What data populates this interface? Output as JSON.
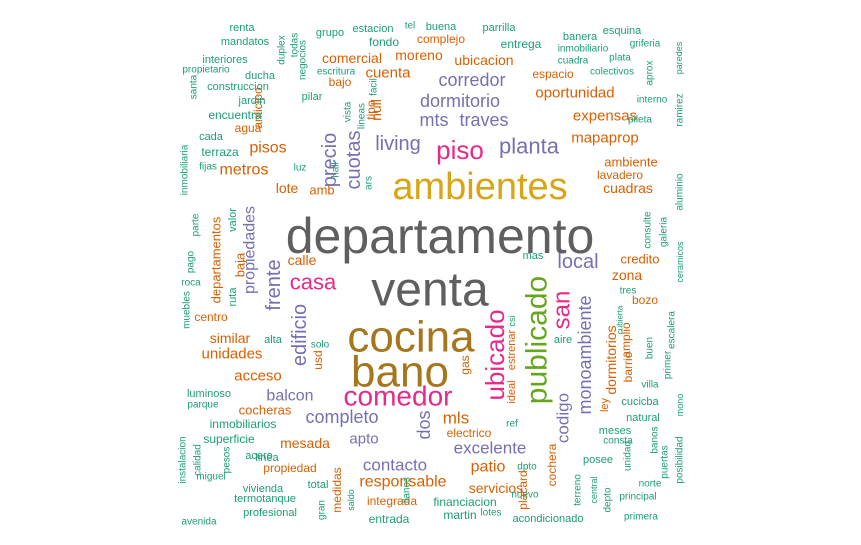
{
  "chart_data": {
    "type": "wordcloud",
    "palette": {
      "gray": "#5f5f5f",
      "gold": "#d9a514",
      "olive": "#a6761d",
      "green": "#66a61e",
      "pink": "#e7298a",
      "purple": "#7570b3",
      "orange": "#d95f02",
      "teal": "#1b9e77"
    },
    "words": [
      {
        "text": "departamento",
        "weight": 48,
        "color": "#5f5f5f"
      },
      {
        "text": "venta",
        "weight": 48,
        "color": "#5f5f5f"
      },
      {
        "text": "ambientes",
        "weight": 38,
        "color": "#d9a514"
      },
      {
        "text": "cocina",
        "weight": 44,
        "color": "#a6761d"
      },
      {
        "text": "bano",
        "weight": 44,
        "color": "#a6761d"
      },
      {
        "text": "publicado",
        "weight": 30,
        "color": "#66a61e"
      },
      {
        "text": "comedor",
        "weight": 28,
        "color": "#e7298a"
      },
      {
        "text": "piso",
        "weight": 26,
        "color": "#e7298a"
      },
      {
        "text": "ubicado",
        "weight": 26,
        "color": "#e7298a"
      },
      {
        "text": "san",
        "weight": 24,
        "color": "#e7298a"
      },
      {
        "text": "casa",
        "weight": 22,
        "color": "#e7298a"
      },
      {
        "text": "planta",
        "weight": 22,
        "color": "#7570b3"
      },
      {
        "text": "living",
        "weight": 20,
        "color": "#7570b3"
      },
      {
        "text": "edificio",
        "weight": 20,
        "color": "#7570b3"
      },
      {
        "text": "frente",
        "weight": 20,
        "color": "#7570b3"
      },
      {
        "text": "cuotas",
        "weight": 20,
        "color": "#7570b3"
      },
      {
        "text": "precio",
        "weight": 20,
        "color": "#7570b3"
      },
      {
        "text": "local",
        "weight": 20,
        "color": "#7570b3"
      },
      {
        "text": "completo",
        "weight": 18,
        "color": "#7570b3"
      },
      {
        "text": "monoambiente",
        "weight": 18,
        "color": "#7570b3"
      },
      {
        "text": "dos",
        "weight": 18,
        "color": "#7570b3"
      },
      {
        "text": "mts",
        "weight": 18,
        "color": "#7570b3"
      },
      {
        "text": "traves",
        "weight": 18,
        "color": "#7570b3"
      },
      {
        "text": "dormitorio",
        "weight": 18,
        "color": "#7570b3"
      },
      {
        "text": "corredor",
        "weight": 18,
        "color": "#7570b3"
      },
      {
        "text": "codigo",
        "weight": 17,
        "color": "#7570b3"
      },
      {
        "text": "excelente",
        "weight": 17,
        "color": "#7570b3"
      },
      {
        "text": "contacto",
        "weight": 17,
        "color": "#7570b3"
      },
      {
        "text": "balcon",
        "weight": 16,
        "color": "#7570b3"
      },
      {
        "text": "propiedades",
        "weight": 16,
        "color": "#7570b3"
      },
      {
        "text": "apto",
        "weight": 15,
        "color": "#7570b3"
      },
      {
        "text": "mls",
        "weight": 17,
        "color": "#d95f02"
      },
      {
        "text": "responsable",
        "weight": 16,
        "color": "#d95f02"
      },
      {
        "text": "patio",
        "weight": 16,
        "color": "#d95f02"
      },
      {
        "text": "cuenta",
        "weight": 15,
        "color": "#d95f02"
      },
      {
        "text": "pisos",
        "weight": 16,
        "color": "#d95f02"
      },
      {
        "text": "metros",
        "weight": 16,
        "color": "#d95f02"
      },
      {
        "text": "mapaprop",
        "weight": 15,
        "color": "#d95f02"
      },
      {
        "text": "expensas",
        "weight": 15,
        "color": "#d95f02"
      },
      {
        "text": "oportunidad",
        "weight": 15,
        "color": "#d95f02"
      },
      {
        "text": "acceso",
        "weight": 15,
        "color": "#d95f02"
      },
      {
        "text": "unidades",
        "weight": 15,
        "color": "#d95f02"
      },
      {
        "text": "cuadras",
        "weight": 14,
        "color": "#d95f02"
      },
      {
        "text": "mesada",
        "weight": 14,
        "color": "#d95f02"
      },
      {
        "text": "calle",
        "weight": 14,
        "color": "#d95f02"
      },
      {
        "text": "lote",
        "weight": 14,
        "color": "#d95f02"
      },
      {
        "text": "comercial",
        "weight": 14,
        "color": "#d95f02"
      },
      {
        "text": "moreno",
        "weight": 14,
        "color": "#d95f02"
      },
      {
        "text": "null",
        "weight": 14,
        "color": "#d95f02"
      },
      {
        "text": "dormitorios",
        "weight": 14,
        "color": "#d95f02"
      },
      {
        "text": "servicios",
        "weight": 14,
        "color": "#d95f02"
      },
      {
        "text": "zona",
        "weight": 14,
        "color": "#d95f02"
      },
      {
        "text": "similar",
        "weight": 14,
        "color": "#d95f02"
      },
      {
        "text": "ubicacion",
        "weight": 14,
        "color": "#d95f02"
      },
      {
        "text": "amb",
        "weight": 13,
        "color": "#d95f02"
      },
      {
        "text": "ambiente",
        "weight": 13,
        "color": "#d95f02"
      },
      {
        "text": "cocheras",
        "weight": 13,
        "color": "#d95f02"
      },
      {
        "text": "baja",
        "weight": 13,
        "color": "#d95f02"
      },
      {
        "text": "departamentos",
        "weight": 13,
        "color": "#d95f02"
      },
      {
        "text": "credito",
        "weight": 13,
        "color": "#d95f02"
      },
      {
        "text": "lavadero",
        "weight": 12,
        "color": "#d95f02"
      },
      {
        "text": "amplio",
        "weight": 12,
        "color": "#d95f02"
      },
      {
        "text": "usd",
        "weight": 12,
        "color": "#d95f02"
      },
      {
        "text": "tipo",
        "weight": 12,
        "color": "#d95f02"
      },
      {
        "text": "bajo",
        "weight": 12,
        "color": "#d95f02"
      },
      {
        "text": "espacio",
        "weight": 12,
        "color": "#d95f02"
      },
      {
        "text": "integrada",
        "weight": 12,
        "color": "#d95f02"
      },
      {
        "text": "propiedad",
        "weight": 12,
        "color": "#d95f02"
      },
      {
        "text": "barrio",
        "weight": 12,
        "color": "#d95f02"
      },
      {
        "text": "bozo",
        "weight": 12,
        "color": "#d95f02"
      },
      {
        "text": "cochera",
        "weight": 12,
        "color": "#d95f02"
      },
      {
        "text": "placard",
        "weight": 12,
        "color": "#d95f02"
      },
      {
        "text": "ley",
        "weight": 11,
        "color": "#d95f02"
      },
      {
        "text": "agua",
        "weight": 12,
        "color": "#d95f02"
      },
      {
        "text": "anticipo",
        "weight": 12,
        "color": "#d95f02"
      },
      {
        "text": "complejo",
        "weight": 12,
        "color": "#d95f02"
      },
      {
        "text": "centro",
        "weight": 12,
        "color": "#d95f02"
      },
      {
        "text": "electrico",
        "weight": 12,
        "color": "#d95f02"
      },
      {
        "text": "medidas",
        "weight": 12,
        "color": "#d95f02"
      },
      {
        "text": "gas",
        "weight": 12,
        "color": "#d95f02"
      },
      {
        "text": "ideal",
        "weight": 11,
        "color": "#d95f02"
      },
      {
        "text": "estrenar",
        "weight": 11,
        "color": "#d95f02"
      },
      {
        "text": "ars",
        "weight": 10,
        "color": "#1b9e77"
      },
      {
        "text": "entrega",
        "weight": 12,
        "color": "#1b9e77"
      },
      {
        "text": "fondo",
        "weight": 12,
        "color": "#1b9e77"
      },
      {
        "text": "financiacion",
        "weight": 12,
        "color": "#1b9e77"
      },
      {
        "text": "martin",
        "weight": 12,
        "color": "#1b9e77"
      },
      {
        "text": "entrada",
        "weight": 12,
        "color": "#1b9e77"
      },
      {
        "text": "superficie",
        "weight": 12,
        "color": "#1b9e77"
      },
      {
        "text": "inmobiliarios",
        "weight": 12,
        "color": "#1b9e77"
      },
      {
        "text": "alta",
        "weight": 11,
        "color": "#1b9e77"
      },
      {
        "text": "solo",
        "weight": 10,
        "color": "#1b9e77"
      },
      {
        "text": "aire",
        "weight": 11,
        "color": "#1b9e77"
      },
      {
        "text": "mas",
        "weight": 11,
        "color": "#1b9e77"
      },
      {
        "text": "linea",
        "weight": 11,
        "color": "#1b9e77"
      },
      {
        "text": "acero",
        "weight": 11,
        "color": "#1b9e77"
      },
      {
        "text": "total",
        "weight": 11,
        "color": "#1b9e77"
      },
      {
        "text": "acondicionado",
        "weight": 11,
        "color": "#1b9e77"
      },
      {
        "text": "vivienda",
        "weight": 11,
        "color": "#1b9e77"
      },
      {
        "text": "termotanque",
        "weight": 11,
        "color": "#1b9e77"
      },
      {
        "text": "profesional",
        "weight": 11,
        "color": "#1b9e77"
      },
      {
        "text": "avenida",
        "weight": 10,
        "color": "#1b9e77"
      },
      {
        "text": "meses",
        "weight": 11,
        "color": "#1b9e77"
      },
      {
        "text": "posee",
        "weight": 11,
        "color": "#1b9e77"
      },
      {
        "text": "natural",
        "weight": 11,
        "color": "#1b9e77"
      },
      {
        "text": "cucicba",
        "weight": 11,
        "color": "#1b9e77"
      },
      {
        "text": "consta",
        "weight": 10,
        "color": "#1b9e77"
      },
      {
        "text": "banos",
        "weight": 10,
        "color": "#1b9e77"
      },
      {
        "text": "unidad",
        "weight": 10,
        "color": "#1b9e77"
      },
      {
        "text": "puertas",
        "weight": 10,
        "color": "#1b9e77"
      },
      {
        "text": "posibilidad",
        "weight": 10,
        "color": "#1b9e77"
      },
      {
        "text": "mono",
        "weight": 9,
        "color": "#1b9e77"
      },
      {
        "text": "villa",
        "weight": 10,
        "color": "#1b9e77"
      },
      {
        "text": "escalera",
        "weight": 10,
        "color": "#1b9e77"
      },
      {
        "text": "primer",
        "weight": 10,
        "color": "#1b9e77"
      },
      {
        "text": "buen",
        "weight": 10,
        "color": "#1b9e77"
      },
      {
        "text": "cubierta",
        "weight": 8,
        "color": "#1b9e77"
      },
      {
        "text": "tres",
        "weight": 10,
        "color": "#1b9e77"
      },
      {
        "text": "ceramicos",
        "weight": 9,
        "color": "#1b9e77"
      },
      {
        "text": "galeria",
        "weight": 10,
        "color": "#1b9e77"
      },
      {
        "text": "consulte",
        "weight": 10,
        "color": "#1b9e77"
      },
      {
        "text": "aluminio",
        "weight": 10,
        "color": "#1b9e77"
      },
      {
        "text": "ramirez",
        "weight": 10,
        "color": "#1b9e77"
      },
      {
        "text": "pileta",
        "weight": 10,
        "color": "#1b9e77"
      },
      {
        "text": "interno",
        "weight": 10,
        "color": "#1b9e77"
      },
      {
        "text": "aprox",
        "weight": 10,
        "color": "#1b9e77"
      },
      {
        "text": "paredes",
        "weight": 9,
        "color": "#1b9e77"
      },
      {
        "text": "colectivos",
        "weight": 10,
        "color": "#1b9e77"
      },
      {
        "text": "plata",
        "weight": 10,
        "color": "#1b9e77"
      },
      {
        "text": "griferia",
        "weight": 10,
        "color": "#1b9e77"
      },
      {
        "text": "esquina",
        "weight": 11,
        "color": "#1b9e77"
      },
      {
        "text": "banera",
        "weight": 11,
        "color": "#1b9e77"
      },
      {
        "text": "inmobiliario",
        "weight": 10,
        "color": "#1b9e77"
      },
      {
        "text": "cuadra",
        "weight": 10,
        "color": "#1b9e77"
      },
      {
        "text": "parrilla",
        "weight": 11,
        "color": "#1b9e77"
      },
      {
        "text": "buena",
        "weight": 11,
        "color": "#1b9e77"
      },
      {
        "text": "tel",
        "weight": 10,
        "color": "#1b9e77"
      },
      {
        "text": "estacion",
        "weight": 11,
        "color": "#1b9e77"
      },
      {
        "text": "grupo",
        "weight": 11,
        "color": "#1b9e77"
      },
      {
        "text": "todas",
        "weight": 10,
        "color": "#1b9e77"
      },
      {
        "text": "duplex",
        "weight": 10,
        "color": "#1b9e77"
      },
      {
        "text": "renta",
        "weight": 11,
        "color": "#1b9e77"
      },
      {
        "text": "mandatos",
        "weight": 11,
        "color": "#1b9e77"
      },
      {
        "text": "interiores",
        "weight": 11,
        "color": "#1b9e77"
      },
      {
        "text": "propietario",
        "weight": 10,
        "color": "#1b9e77"
      },
      {
        "text": "ducha",
        "weight": 11,
        "color": "#1b9e77"
      },
      {
        "text": "construccion",
        "weight": 11,
        "color": "#1b9e77"
      },
      {
        "text": "santa",
        "weight": 10,
        "color": "#1b9e77"
      },
      {
        "text": "jardin",
        "weight": 11,
        "color": "#1b9e77"
      },
      {
        "text": "encuentra",
        "weight": 12,
        "color": "#1b9e77"
      },
      {
        "text": "cada",
        "weight": 11,
        "color": "#1b9e77"
      },
      {
        "text": "terraza",
        "weight": 12,
        "color": "#1b9e77"
      },
      {
        "text": "inmobiliaria",
        "weight": 10,
        "color": "#1b9e77"
      },
      {
        "text": "fijas",
        "weight": 10,
        "color": "#1b9e77"
      },
      {
        "text": "parte",
        "weight": 10,
        "color": "#1b9e77"
      },
      {
        "text": "valor",
        "weight": 11,
        "color": "#1b9e77"
      },
      {
        "text": "pago",
        "weight": 10,
        "color": "#1b9e77"
      },
      {
        "text": "roca",
        "weight": 10,
        "color": "#1b9e77"
      },
      {
        "text": "muebles",
        "weight": 10,
        "color": "#1b9e77"
      },
      {
        "text": "ruta",
        "weight": 11,
        "color": "#1b9e77"
      },
      {
        "text": "luminoso",
        "weight": 11,
        "color": "#1b9e77"
      },
      {
        "text": "parque",
        "weight": 10,
        "color": "#1b9e77"
      },
      {
        "text": "instalacion",
        "weight": 10,
        "color": "#1b9e77"
      },
      {
        "text": "calidad",
        "weight": 10,
        "color": "#1b9e77"
      },
      {
        "text": "miguel",
        "weight": 10,
        "color": "#1b9e77"
      },
      {
        "text": "pesos",
        "weight": 10,
        "color": "#1b9e77"
      },
      {
        "text": "negocios",
        "weight": 10,
        "color": "#1b9e77"
      },
      {
        "text": "escritura",
        "weight": 10,
        "color": "#1b9e77"
      },
      {
        "text": "pilar",
        "weight": 11,
        "color": "#1b9e77"
      },
      {
        "text": "vista",
        "weight": 10,
        "color": "#1b9e77"
      },
      {
        "text": "lineas",
        "weight": 10,
        "color": "#1b9e77"
      },
      {
        "text": "hall",
        "weight": 10,
        "color": "#1b9e77"
      },
      {
        "text": "facil",
        "weight": 10,
        "color": "#1b9e77"
      },
      {
        "text": "luz",
        "weight": 10,
        "color": "#1b9e77"
      },
      {
        "text": "llanos",
        "weight": 10,
        "color": "#1b9e77"
      },
      {
        "text": "ref",
        "weight": 10,
        "color": "#1b9e77"
      },
      {
        "text": "csi",
        "weight": 9,
        "color": "#1b9e77"
      },
      {
        "text": "dpto",
        "weight": 10,
        "color": "#1b9e77"
      },
      {
        "text": "nuevo",
        "weight": 10,
        "color": "#1b9e77"
      },
      {
        "text": "lotes",
        "weight": 10,
        "color": "#1b9e77"
      },
      {
        "text": "gran",
        "weight": 10,
        "color": "#1b9e77"
      },
      {
        "text": "saldo",
        "weight": 9,
        "color": "#1b9e77"
      },
      {
        "text": "terreno",
        "weight": 10,
        "color": "#1b9e77"
      },
      {
        "text": "central",
        "weight": 9,
        "color": "#1b9e77"
      },
      {
        "text": "depto",
        "weight": 10,
        "color": "#1b9e77"
      },
      {
        "text": "principal",
        "weight": 10,
        "color": "#1b9e77"
      },
      {
        "text": "norte",
        "weight": 10,
        "color": "#1b9e77"
      },
      {
        "text": "primera",
        "weight": 10,
        "color": "#1b9e77"
      }
    ]
  }
}
